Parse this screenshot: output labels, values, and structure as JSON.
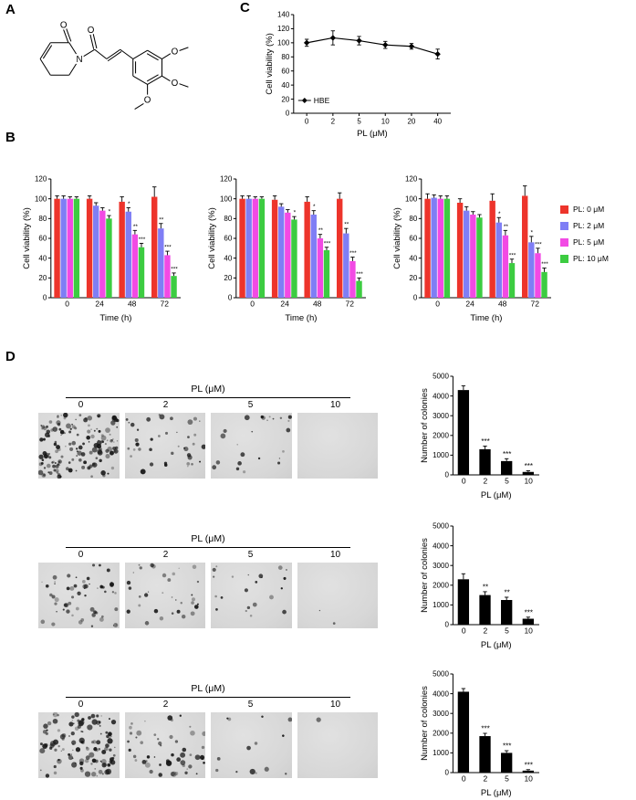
{
  "panels": {
    "a": "A",
    "b": "B",
    "c": "C",
    "d": "D"
  },
  "panel_a": {
    "name": "piperlongumine structure",
    "atoms": {
      "o_lactam": "O",
      "o_amide": "O",
      "n": "N",
      "o_meta_top": "O",
      "o_para": "O",
      "o_meta_bottom": "O"
    }
  },
  "colors": {
    "pl0": "#ed342b",
    "pl2": "#7f7ef5",
    "pl5": "#f24ae4",
    "pl10": "#3ccc41",
    "black": "#000000"
  },
  "legend_b": {
    "items": [
      {
        "label": "PL: 0 μM",
        "color": "#ed342b"
      },
      {
        "label": "PL: 2 μM",
        "color": "#7f7ef5"
      },
      {
        "label": "PL: 5 μM",
        "color": "#f24ae4"
      },
      {
        "label": "PL: 10 μM",
        "color": "#3ccc41"
      }
    ]
  },
  "panel_d": {
    "rows": [
      {
        "header": "PL (μM)",
        "image_labels": [
          "0",
          "2",
          "5",
          "10"
        ],
        "dot_counts": [
          150,
          40,
          24,
          0
        ],
        "dot_size": 2.4,
        "chart_id": "d1"
      },
      {
        "header": "PL (μM)",
        "image_labels": [
          "0",
          "2",
          "5",
          "10"
        ],
        "dot_counts": [
          60,
          34,
          22,
          2
        ],
        "dot_size": 1.9,
        "chart_id": "d2"
      },
      {
        "header": "PL (μM)",
        "image_labels": [
          "0",
          "2",
          "5",
          "10"
        ],
        "dot_counts": [
          120,
          52,
          14,
          1
        ],
        "dot_size": 2.6,
        "chart_id": "d3"
      }
    ]
  },
  "chart_data": [
    {
      "id": "b1",
      "type": "bar",
      "title": "",
      "xlabel": "Time (h)",
      "ylabel": "Cell viability (%)",
      "ylim": [
        0,
        120
      ],
      "yticks": [
        0,
        20,
        40,
        60,
        80,
        100,
        120
      ],
      "categories": [
        "0",
        "24",
        "48",
        "72"
      ],
      "bar_frac": 0.8,
      "sig_size": 6.5,
      "series": [
        {
          "name": "PL: 0 μM",
          "color": "#ed342b",
          "values": [
            100,
            100,
            97,
            102
          ],
          "errors": [
            3,
            3,
            5,
            10
          ],
          "sig": [
            "",
            "",
            "",
            ""
          ]
        },
        {
          "name": "PL: 2 μM",
          "color": "#7f7ef5",
          "values": [
            100,
            93,
            87,
            70
          ],
          "errors": [
            3,
            3,
            4,
            5
          ],
          "sig": [
            "",
            "",
            "*",
            "**"
          ]
        },
        {
          "name": "PL: 5 μM",
          "color": "#f24ae4",
          "values": [
            100,
            88,
            64,
            43
          ],
          "errors": [
            2,
            3,
            4,
            4
          ],
          "sig": [
            "",
            "",
            "**",
            "***"
          ]
        },
        {
          "name": "PL: 10 μM",
          "color": "#3ccc41",
          "values": [
            100,
            80,
            51,
            22
          ],
          "errors": [
            2,
            3,
            4,
            3
          ],
          "sig": [
            "",
            "*",
            "***",
            "***"
          ]
        }
      ]
    },
    {
      "id": "b2",
      "type": "bar",
      "title": "",
      "xlabel": "Time (h)",
      "ylabel": "Cell viability (%)",
      "ylim": [
        0,
        120
      ],
      "yticks": [
        0,
        20,
        40,
        60,
        80,
        100,
        120
      ],
      "categories": [
        "0",
        "24",
        "48",
        "72"
      ],
      "bar_frac": 0.8,
      "sig_size": 6.5,
      "series": [
        {
          "name": "PL: 0 μM",
          "color": "#ed342b",
          "values": [
            100,
            99,
            97,
            100
          ],
          "errors": [
            3,
            4,
            5,
            6
          ],
          "sig": [
            "",
            "",
            "",
            ""
          ]
        },
        {
          "name": "PL: 2 μM",
          "color": "#7f7ef5",
          "values": [
            100,
            92,
            84,
            65
          ],
          "errors": [
            3,
            3,
            4,
            5
          ],
          "sig": [
            "",
            "",
            "*",
            "**"
          ]
        },
        {
          "name": "PL: 5 μM",
          "color": "#f24ae4",
          "values": [
            100,
            86,
            60,
            37
          ],
          "errors": [
            2,
            3,
            4,
            4
          ],
          "sig": [
            "",
            "",
            "**",
            "***"
          ]
        },
        {
          "name": "PL: 10 μM",
          "color": "#3ccc41",
          "values": [
            100,
            79,
            48,
            17
          ],
          "errors": [
            2,
            3,
            3,
            3
          ],
          "sig": [
            "",
            "*",
            "***",
            "***"
          ]
        }
      ]
    },
    {
      "id": "b3",
      "type": "bar",
      "title": "",
      "xlabel": "Time (h)",
      "ylabel": "Cell viability (%)",
      "ylim": [
        0,
        120
      ],
      "yticks": [
        0,
        20,
        40,
        60,
        80,
        100,
        120
      ],
      "categories": [
        "0",
        "24",
        "48",
        "72"
      ],
      "bar_frac": 0.8,
      "sig_size": 6.5,
      "series": [
        {
          "name": "PL: 0 μM",
          "color": "#ed342b",
          "values": [
            100,
            96,
            98,
            103
          ],
          "errors": [
            5,
            4,
            7,
            10
          ],
          "sig": [
            "",
            "",
            "",
            ""
          ]
        },
        {
          "name": "PL: 2 μM",
          "color": "#7f7ef5",
          "values": [
            101,
            88,
            76,
            56
          ],
          "errors": [
            3,
            4,
            5,
            6
          ],
          "sig": [
            "",
            "",
            "*",
            "*"
          ]
        },
        {
          "name": "PL: 5 μM",
          "color": "#f24ae4",
          "values": [
            100,
            84,
            63,
            45
          ],
          "errors": [
            3,
            3,
            5,
            5
          ],
          "sig": [
            "",
            "",
            "**",
            "***"
          ]
        },
        {
          "name": "PL: 10 μM",
          "color": "#3ccc41",
          "values": [
            100,
            81,
            35,
            26
          ],
          "errors": [
            3,
            3,
            4,
            4
          ],
          "sig": [
            "",
            "",
            "***",
            "***"
          ]
        }
      ]
    },
    {
      "id": "c",
      "type": "line",
      "title": "",
      "xlabel": "PL (μM)",
      "ylabel": "Cell viability (%)",
      "legend": "HBE",
      "color": "#000000",
      "x": [
        "0",
        "2",
        "5",
        "10",
        "20",
        "40"
      ],
      "values": [
        100,
        107,
        103,
        97,
        95,
        84
      ],
      "errors": [
        5,
        10,
        6,
        5,
        4,
        7
      ],
      "ylim": [
        0,
        140
      ],
      "yticks": [
        0,
        20,
        40,
        60,
        80,
        100,
        120,
        140
      ]
    },
    {
      "id": "d1",
      "type": "bar",
      "title": "",
      "xlabel": "PL (μM)",
      "ylabel": "Number of colonies",
      "ylim": [
        0,
        5000
      ],
      "yticks": [
        0,
        1000,
        2000,
        3000,
        4000,
        5000
      ],
      "categories": [
        "0",
        "2",
        "5",
        "10"
      ],
      "bar_frac": 0.55,
      "sig_size": 8,
      "series": [
        {
          "name": "colonies",
          "color": "#000000",
          "values": [
            4300,
            1300,
            700,
            150
          ],
          "errors": [
            220,
            160,
            120,
            60
          ],
          "sig": [
            "",
            "***",
            "***",
            "***"
          ]
        }
      ]
    },
    {
      "id": "d2",
      "type": "bar",
      "title": "",
      "xlabel": "PL (μM)",
      "ylabel": "Number of colonies",
      "ylim": [
        0,
        5000
      ],
      "yticks": [
        0,
        1000,
        2000,
        3000,
        4000,
        5000
      ],
      "categories": [
        "0",
        "2",
        "5",
        "10"
      ],
      "bar_frac": 0.55,
      "sig_size": 8,
      "series": [
        {
          "name": "colonies",
          "color": "#000000",
          "values": [
            2300,
            1500,
            1250,
            300
          ],
          "errors": [
            280,
            170,
            140,
            80
          ],
          "sig": [
            "",
            "**",
            "**",
            "***"
          ]
        }
      ]
    },
    {
      "id": "d3",
      "type": "bar",
      "title": "",
      "xlabel": "PL (μM)",
      "ylabel": "Number of colonies",
      "ylim": [
        0,
        5000
      ],
      "yticks": [
        0,
        1000,
        2000,
        3000,
        4000,
        5000
      ],
      "categories": [
        "0",
        "2",
        "5",
        "10"
      ],
      "bar_frac": 0.55,
      "sig_size": 8,
      "series": [
        {
          "name": "colonies",
          "color": "#000000",
          "values": [
            4100,
            1850,
            1000,
            100
          ],
          "errors": [
            160,
            140,
            110,
            50
          ],
          "sig": [
            "",
            "***",
            "***",
            "***"
          ]
        }
      ]
    }
  ]
}
